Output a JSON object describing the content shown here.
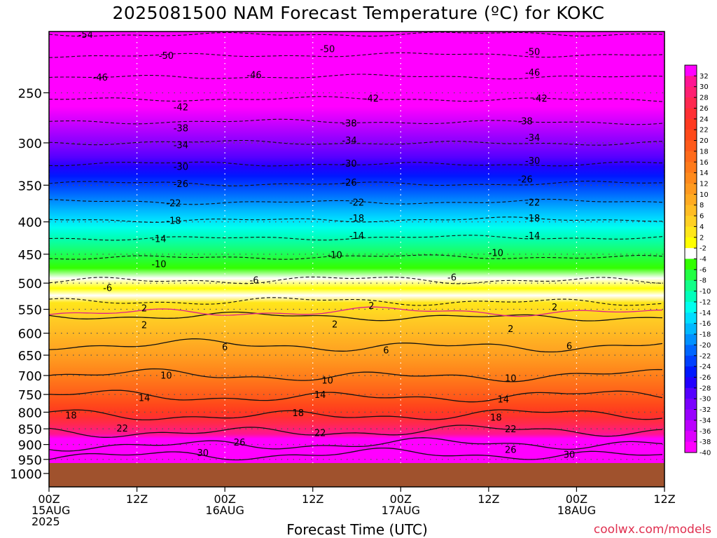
{
  "title": "2025081500 NAM Forecast Temperature (ºC) for KOKC",
  "x_axis_label": "Forecast Time (UTC)",
  "credit": "coolwx.com/models",
  "chart_data": {
    "type": "heatmap",
    "title": "2025081500 NAM Forecast Temperature (ºC) for KOKC",
    "xlabel": "Forecast Time (UTC)",
    "ylabel": "",
    "x_ticks": [
      {
        "hour": 0,
        "lines": [
          "00Z",
          "15AUG",
          "2025"
        ]
      },
      {
        "hour": 12,
        "lines": [
          "12Z"
        ]
      },
      {
        "hour": 24,
        "lines": [
          "00Z",
          "16AUG"
        ]
      },
      {
        "hour": 36,
        "lines": [
          "12Z"
        ]
      },
      {
        "hour": 48,
        "lines": [
          "00Z",
          "17AUG"
        ]
      },
      {
        "hour": 60,
        "lines": [
          "12Z"
        ]
      },
      {
        "hour": 72,
        "lines": [
          "00Z",
          "18AUG"
        ]
      },
      {
        "hour": 84,
        "lines": [
          "12Z"
        ]
      }
    ],
    "xlim": [
      0,
      84
    ],
    "y_ticks": [
      250,
      300,
      350,
      400,
      450,
      500,
      550,
      600,
      650,
      700,
      750,
      800,
      850,
      900,
      950,
      1000
    ],
    "ylim": [
      200,
      1050
    ],
    "y_scale": "log-pressure",
    "surface_pressure_hPa": 965,
    "colorbar": {
      "labels": [
        32,
        30,
        28,
        26,
        24,
        22,
        20,
        18,
        16,
        14,
        12,
        10,
        8,
        6,
        4,
        2,
        -2,
        -4,
        -6,
        -8,
        -10,
        -12,
        -14,
        -16,
        -18,
        -20,
        -22,
        -24,
        -26,
        -28,
        -30,
        -32,
        -34,
        -36,
        -38,
        -40
      ],
      "colors": [
        "#ff00ff",
        "#ff1493",
        "#ff1f72",
        "#ff2850",
        "#ff2f34",
        "#ff3a20",
        "#ff4a1a",
        "#ff5a1a",
        "#ff6a1a",
        "#ff7a1a",
        "#ff8a1c",
        "#ff9a20",
        "#ffab22",
        "#ffbd24",
        "#ffd024",
        "#ffe61a",
        "#ffff00",
        "#ffffff",
        "#33ff00",
        "#22ff44",
        "#11ff88",
        "#00ffbb",
        "#00ffee",
        "#00ddff",
        "#00b8ff",
        "#0090ff",
        "#0066ff",
        "#0040ff",
        "#0018ff",
        "#2200ff",
        "#5500ff",
        "#7a00ff",
        "#9900ff",
        "#bb00ff",
        "#dd00ff",
        "#ff00ff"
      ]
    },
    "contour_levels_C": [
      -54,
      -50,
      -46,
      -42,
      -38,
      -34,
      -30,
      -26,
      -22,
      -18,
      -14,
      -10,
      -6,
      -2,
      2,
      6,
      10,
      14,
      18,
      22,
      26,
      30
    ],
    "isotherm_levels": [
      {
        "t": -54,
        "p": 202
      },
      {
        "t": -50,
        "p": 218
      },
      {
        "t": -46,
        "p": 236
      },
      {
        "t": -42,
        "p": 256
      },
      {
        "t": -38,
        "p": 278
      },
      {
        "t": -34,
        "p": 300
      },
      {
        "t": -30,
        "p": 324
      },
      {
        "t": -26,
        "p": 348
      },
      {
        "t": -22,
        "p": 372
      },
      {
        "t": -18,
        "p": 397
      },
      {
        "t": -14,
        "p": 424
      },
      {
        "t": -10,
        "p": 455
      },
      {
        "t": -6,
        "p": 495
      },
      {
        "t": -2,
        "p": 535
      },
      {
        "t": 2,
        "p": 565
      },
      {
        "t": 6,
        "p": 628
      },
      {
        "t": 10,
        "p": 700
      },
      {
        "t": 14,
        "p": 755
      },
      {
        "t": 18,
        "p": 808
      },
      {
        "t": 22,
        "p": 858
      },
      {
        "t": 26,
        "p": 900
      },
      {
        "t": 30,
        "p": 935
      }
    ],
    "contour_labels": [
      {
        "text": "-54",
        "hour": 5,
        "p": 202
      },
      {
        "text": "-50",
        "hour": 16,
        "p": 218
      },
      {
        "text": "-50",
        "hour": 38,
        "p": 213
      },
      {
        "text": "-50",
        "hour": 66,
        "p": 215
      },
      {
        "text": "-46",
        "hour": 7,
        "p": 236
      },
      {
        "text": "-46",
        "hour": 28,
        "p": 234
      },
      {
        "text": "-46",
        "hour": 66,
        "p": 232
      },
      {
        "text": "-42",
        "hour": 18,
        "p": 263
      },
      {
        "text": "-42",
        "hour": 44,
        "p": 255
      },
      {
        "text": "-42",
        "hour": 67,
        "p": 255
      },
      {
        "text": "-38",
        "hour": 18,
        "p": 284
      },
      {
        "text": "-38",
        "hour": 41,
        "p": 279
      },
      {
        "text": "-38",
        "hour": 65,
        "p": 277
      },
      {
        "text": "-34",
        "hour": 18,
        "p": 302
      },
      {
        "text": "-34",
        "hour": 41,
        "p": 297
      },
      {
        "text": "-34",
        "hour": 66,
        "p": 294
      },
      {
        "text": "-30",
        "hour": 18,
        "p": 327
      },
      {
        "text": "-30",
        "hour": 41,
        "p": 323
      },
      {
        "text": "-30",
        "hour": 66,
        "p": 320
      },
      {
        "text": "-26",
        "hour": 18,
        "p": 348
      },
      {
        "text": "-26",
        "hour": 41,
        "p": 346
      },
      {
        "text": "-26",
        "hour": 65,
        "p": 342
      },
      {
        "text": "-22",
        "hour": 17,
        "p": 373
      },
      {
        "text": "-22",
        "hour": 42,
        "p": 372
      },
      {
        "text": "-22",
        "hour": 66,
        "p": 372
      },
      {
        "text": "-18",
        "hour": 17,
        "p": 398
      },
      {
        "text": "-18",
        "hour": 42,
        "p": 394
      },
      {
        "text": "-18",
        "hour": 66,
        "p": 394
      },
      {
        "text": "-14",
        "hour": 15,
        "p": 425
      },
      {
        "text": "-14",
        "hour": 42,
        "p": 420
      },
      {
        "text": "-14",
        "hour": 66,
        "p": 420
      },
      {
        "text": "-10",
        "hour": 15,
        "p": 466
      },
      {
        "text": "-10",
        "hour": 39,
        "p": 451
      },
      {
        "text": "-10",
        "hour": 61,
        "p": 447
      },
      {
        "text": "-6",
        "hour": 8,
        "p": 508
      },
      {
        "text": "-6",
        "hour": 28,
        "p": 494
      },
      {
        "text": "-6",
        "hour": 55,
        "p": 489
      },
      {
        "text": "2",
        "hour": 13,
        "p": 547
      },
      {
        "text": "2",
        "hour": 13,
        "p": 582
      },
      {
        "text": "2",
        "hour": 44,
        "p": 542
      },
      {
        "text": "2",
        "hour": 39,
        "p": 580
      },
      {
        "text": "2",
        "hour": 63,
        "p": 590
      },
      {
        "text": "2",
        "hour": 69,
        "p": 545
      },
      {
        "text": "6",
        "hour": 24,
        "p": 630
      },
      {
        "text": "6",
        "hour": 46,
        "p": 638
      },
      {
        "text": "6",
        "hour": 71,
        "p": 628
      },
      {
        "text": "10",
        "hour": 16,
        "p": 699
      },
      {
        "text": "10",
        "hour": 38,
        "p": 712
      },
      {
        "text": "10",
        "hour": 63,
        "p": 706
      },
      {
        "text": "14",
        "hour": 13,
        "p": 758
      },
      {
        "text": "14",
        "hour": 37,
        "p": 750
      },
      {
        "text": "14",
        "hour": 62,
        "p": 762
      },
      {
        "text": "18",
        "hour": 3,
        "p": 808
      },
      {
        "text": "18",
        "hour": 34,
        "p": 801
      },
      {
        "text": "18",
        "hour": 61,
        "p": 815
      },
      {
        "text": "22",
        "hour": 10,
        "p": 848
      },
      {
        "text": "22",
        "hour": 37,
        "p": 862
      },
      {
        "text": "22",
        "hour": 63,
        "p": 850
      },
      {
        "text": "26",
        "hour": 26,
        "p": 892
      },
      {
        "text": "26",
        "hour": 63,
        "p": 916
      },
      {
        "text": "30",
        "hour": 21,
        "p": 927
      },
      {
        "text": "30",
        "hour": 71,
        "p": 933
      }
    ]
  }
}
